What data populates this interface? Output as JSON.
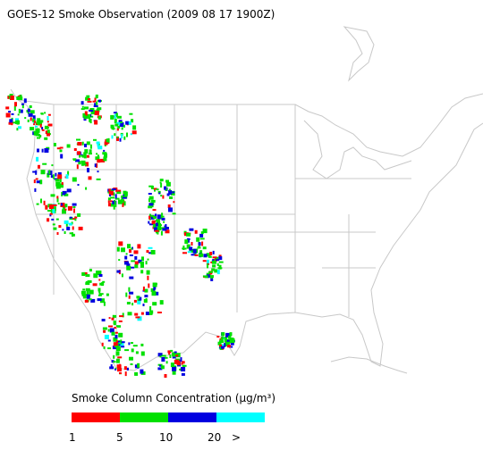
{
  "title": "GOES-12 Smoke Observation (2009 08 17  1900Z)",
  "legend": {
    "title": "Smoke Column Concentration (μg/m³)",
    "colors": [
      "#ff0000",
      "#00e000",
      "#0000e0",
      "#00ffff"
    ],
    "labels": [
      "1",
      "5",
      "10",
      "20",
      ">"
    ]
  }
}
